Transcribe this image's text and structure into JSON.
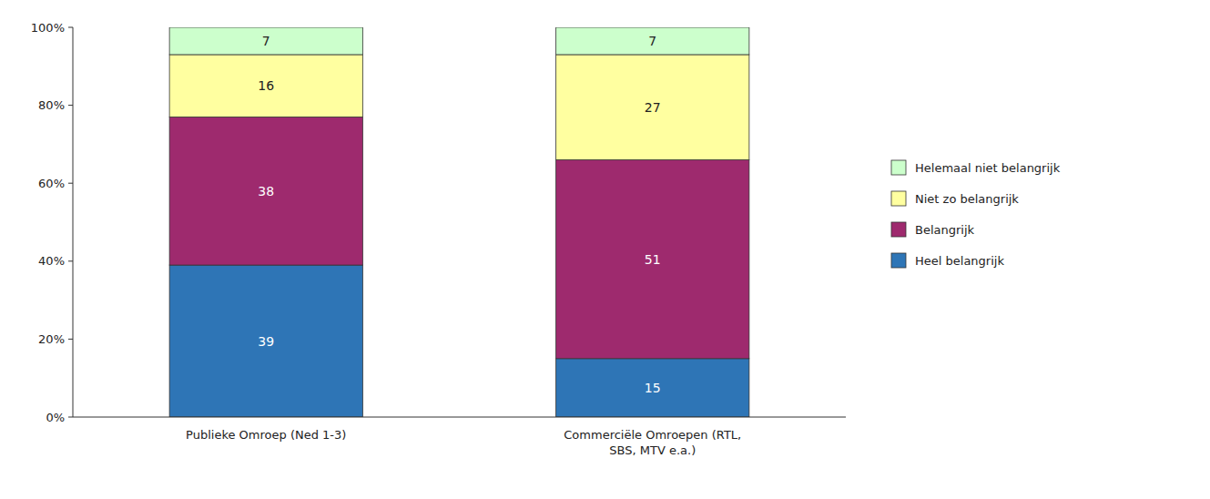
{
  "chart_data": {
    "type": "bar",
    "stacked": true,
    "data_labels": true,
    "grid": false,
    "legend": "right",
    "categories": [
      "Publieke Omroep (Ned 1-3)",
      "Commerciële Omroepen (RTL,\nSBS, MTV e.a.)"
    ],
    "series": [
      {
        "name": "Heel belangrijk",
        "color": "#2E75B6",
        "values": [
          39,
          15
        ]
      },
      {
        "name": "Belangrijk",
        "color": "#9E2A6E",
        "values": [
          38,
          51
        ]
      },
      {
        "name": "Niet zo belangrijk",
        "color": "#FFFFA0",
        "values": [
          16,
          27
        ]
      },
      {
        "name": "Helemaal niet belangrijk",
        "color": "#CCFFCC",
        "values": [
          7,
          7
        ]
      }
    ],
    "ylim": [
      0,
      100
    ],
    "yticks": [
      {
        "value": 0,
        "label": "0%"
      },
      {
        "value": 20,
        "label": "20%"
      },
      {
        "value": 40,
        "label": "40%"
      },
      {
        "value": 60,
        "label": "60%"
      },
      {
        "value": 80,
        "label": "80%"
      },
      {
        "value": 100,
        "label": "100%"
      }
    ]
  }
}
